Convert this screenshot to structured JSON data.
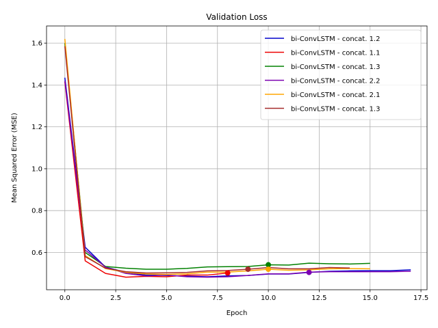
{
  "chart_data": {
    "type": "line",
    "title": "Validation Loss",
    "xlabel": "Epoch",
    "ylabel": "Mean Squared Error (MSE)",
    "xlim": [
      -0.9,
      17.8
    ],
    "ylim": [
      0.422,
      1.682
    ],
    "xticks": [
      0.0,
      2.5,
      5.0,
      7.5,
      10.0,
      12.5,
      15.0,
      17.5
    ],
    "xtick_labels": [
      "0.0",
      "2.5",
      "5.0",
      "7.5",
      "10.0",
      "12.5",
      "15.0",
      "17.5"
    ],
    "yticks": [
      0.6,
      0.8,
      1.0,
      1.2,
      1.4,
      1.6
    ],
    "ytick_labels": [
      "0.6",
      "0.8",
      "1.0",
      "1.2",
      "1.4",
      "1.6"
    ],
    "grid": true,
    "legend_position": "top-right",
    "series": [
      {
        "name": "bi-ConvLSTM - concat. 1.2",
        "color": "#0000cc",
        "x": [
          0,
          1,
          2,
          3,
          4,
          5,
          6,
          7,
          8,
          9,
          10,
          11,
          12,
          13,
          14,
          15,
          16,
          17
        ],
        "y": [
          1.435,
          0.625,
          0.53,
          0.505,
          0.492,
          0.49,
          0.487,
          0.484,
          0.488,
          0.49,
          0.497,
          0.497,
          0.505,
          0.51,
          0.512,
          0.513,
          0.513,
          0.517
        ],
        "min_marker": null
      },
      {
        "name": "bi-ConvLSTM - concat. 1.1",
        "color": "#ee0000",
        "x": [
          0,
          1,
          2,
          3,
          4,
          5,
          6,
          7,
          8
        ],
        "y": [
          1.415,
          0.56,
          0.5,
          0.482,
          0.486,
          0.484,
          0.492,
          0.492,
          0.502
        ],
        "min_marker": {
          "x": 8,
          "y": 0.502
        }
      },
      {
        "name": "bi-ConvLSTM - concat. 1.3",
        "color": "#008000",
        "x": [
          0,
          1,
          2,
          3,
          4,
          5,
          6,
          7,
          8,
          9,
          10,
          11,
          12,
          13,
          14,
          15
        ],
        "y": [
          1.6,
          0.6,
          0.533,
          0.525,
          0.52,
          0.52,
          0.524,
          0.531,
          0.532,
          0.533,
          0.541,
          0.54,
          0.549,
          0.546,
          0.545,
          0.548
        ],
        "min_marker": {
          "x": 10,
          "y": 0.541
        }
      },
      {
        "name": "bi-ConvLSTM - concat. 2.2",
        "color": "#7b00b0",
        "x": [
          0,
          1,
          2,
          3,
          4,
          5,
          6,
          7,
          8,
          9,
          10,
          11,
          12,
          13,
          14,
          15,
          16,
          17
        ],
        "y": [
          1.42,
          0.612,
          0.53,
          0.5,
          0.488,
          0.492,
          0.484,
          0.482,
          0.484,
          0.49,
          0.498,
          0.498,
          0.506,
          0.508,
          0.508,
          0.508,
          0.508,
          0.51
        ],
        "min_marker": {
          "x": 12,
          "y": 0.505
        }
      },
      {
        "name": "bi-ConvLSTM - concat. 2.1",
        "color": "#ffa500",
        "x": [
          0,
          1,
          2,
          3,
          4,
          5,
          6,
          7,
          8,
          9,
          10,
          11,
          12,
          13,
          14,
          15
        ],
        "y": [
          1.62,
          0.585,
          0.523,
          0.505,
          0.497,
          0.495,
          0.498,
          0.506,
          0.506,
          0.512,
          0.52,
          0.515,
          0.517,
          0.522,
          0.523,
          0.522
        ],
        "min_marker": {
          "x": 10,
          "y": 0.52
        }
      },
      {
        "name": "bi-ConvLSTM - concat. 1.3",
        "color": "#a52a2a",
        "x": [
          0,
          1,
          2,
          3,
          4,
          5,
          6,
          7,
          8,
          9,
          10,
          11,
          12,
          13,
          14
        ],
        "y": [
          1.585,
          0.58,
          0.525,
          0.508,
          0.502,
          0.503,
          0.505,
          0.512,
          0.514,
          0.52,
          0.528,
          0.522,
          0.522,
          0.528,
          0.526
        ],
        "min_marker": {
          "x": 9,
          "y": 0.52
        }
      }
    ]
  }
}
